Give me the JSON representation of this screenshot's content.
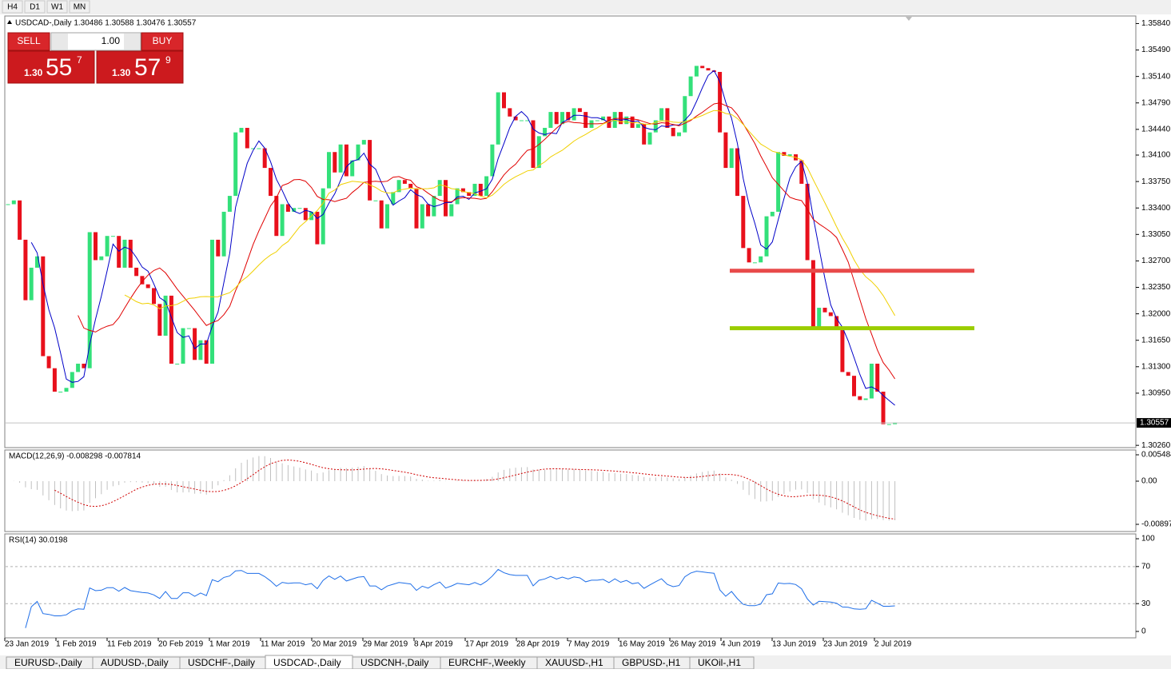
{
  "toolbar": {
    "buttons": [
      "H4",
      "D1",
      "W1",
      "MN"
    ]
  },
  "header": {
    "title": "USDCAD-,Daily  1.30486 1.30588 1.30476 1.30557"
  },
  "trade_panel": {
    "sell": "SELL",
    "buy": "BUY",
    "lot": "1.00",
    "sell_price": {
      "prefix": "1.30",
      "big": "55",
      "small": "7"
    },
    "buy_price": {
      "prefix": "1.30",
      "big": "57",
      "small": "9"
    }
  },
  "chart_data": {
    "type": "candlestick",
    "close": [
      1.3345,
      1.335,
      1.3298,
      1.3218,
      1.3261,
      1.3276,
      1.3144,
      1.3128,
      1.3097,
      1.3097,
      1.3102,
      1.3123,
      1.3134,
      1.3128,
      1.3308,
      1.3271,
      1.3276,
      1.3303,
      1.3303,
      1.3261,
      1.3298,
      1.3261,
      1.325,
      1.3239,
      1.3234,
      1.3213,
      1.3171,
      1.3224,
      1.3134,
      1.3134,
      1.3181,
      1.3181,
      1.3139,
      1.3165,
      1.3134,
      1.3298,
      1.3276,
      1.3335,
      1.3356,
      1.344,
      1.3446,
      1.3419,
      1.3419,
      1.3419,
      1.3393,
      1.3356,
      1.3303,
      1.3345,
      1.3335,
      1.334,
      1.334,
      1.3324,
      1.3335,
      1.3292,
      1.3366,
      1.3414,
      1.3387,
      1.3424,
      1.3382,
      1.3403,
      1.3424,
      1.343,
      1.335,
      1.335,
      1.3313,
      1.3345,
      1.3361,
      1.3377,
      1.3372,
      1.3366,
      1.3313,
      1.3345,
      1.3329,
      1.3356,
      1.3377,
      1.3329,
      1.3345,
      1.3366,
      1.3361,
      1.3356,
      1.3372,
      1.3356,
      1.3382,
      1.3424,
      1.3493,
      1.3472,
      1.3461,
      1.3456,
      1.3456,
      1.3456,
      1.3393,
      1.3435,
      1.3446,
      1.3467,
      1.3451,
      1.3467,
      1.3456,
      1.3472,
      1.3467,
      1.3446,
      1.3456,
      1.3456,
      1.3461,
      1.3446,
      1.3467,
      1.3451,
      1.3461,
      1.3446,
      1.3451,
      1.3424,
      1.344,
      1.3456,
      1.3472,
      1.3446,
      1.3435,
      1.344,
      1.3488,
      1.3514,
      1.3528,
      1.3525,
      1.3522,
      1.352,
      1.344,
      1.3393,
      1.3419,
      1.3356,
      1.3287,
      1.3268,
      1.3268,
      1.3276,
      1.3329,
      1.3335,
      1.3414,
      1.3409,
      1.3411,
      1.3403,
      1.3372,
      1.3271,
      1.3181,
      1.3208,
      1.3202,
      1.3197,
      1.3181,
      1.3123,
      1.3118,
      1.3091,
      1.3086,
      1.3088,
      1.3134,
      1.3097,
      1.3054,
      1.3054,
      1.3056
    ],
    "up_color": "#33e07a",
    "down_color": "#e8101c",
    "ma_colors": [
      "#0000c8",
      "#e00000",
      "#f0d000"
    ],
    "levels": [
      {
        "price": 1.3257,
        "color": "#e84a4a"
      },
      {
        "price": 1.3181,
        "color": "#9acd00"
      }
    ],
    "current_price": 1.30557,
    "ylim": [
      1.3023,
      1.3594
    ],
    "yticks": [
      {
        "value": 1.3584,
        "label": "1.35840"
      },
      {
        "value": 1.3549,
        "label": "1.35490"
      },
      {
        "value": 1.3514,
        "label": "1.35140"
      },
      {
        "value": 1.3479,
        "label": "1.34790"
      },
      {
        "value": 1.3444,
        "label": "1.34440"
      },
      {
        "value": 1.341,
        "label": "1.34100"
      },
      {
        "value": 1.3375,
        "label": "1.33750"
      },
      {
        "value": 1.334,
        "label": "1.33400"
      },
      {
        "value": 1.3305,
        "label": "1.33050"
      },
      {
        "value": 1.327,
        "label": "1.32700"
      },
      {
        "value": 1.3235,
        "label": "1.32350"
      },
      {
        "value": 1.32,
        "label": "1.32000"
      },
      {
        "value": 1.3165,
        "label": "1.31650"
      },
      {
        "value": 1.313,
        "label": "1.31300"
      },
      {
        "value": 1.3095,
        "label": "1.30950"
      },
      {
        "value": 1.3026,
        "label": "1.30260"
      }
    ],
    "x_labels": [
      "23 Jan 2019",
      "1 Feb 2019",
      "11 Feb 2019",
      "20 Feb 2019",
      "1 Mar 2019",
      "11 Mar 2019",
      "20 Mar 2019",
      "29 Mar 2019",
      "8 Apr 2019",
      "17 Apr 2019",
      "28 Apr 2019",
      "7 May 2019",
      "16 May 2019",
      "26 May 2019",
      "4 Jun 2019",
      "13 Jun 2019",
      "23 Jun 2019",
      "2 Jul 2019"
    ],
    "macd": {
      "title": "MACD(12,26,9) -0.008298 -0.007814",
      "ylim": [
        -0.01047,
        0.00648
      ],
      "yticks": [
        0.005484,
        {
          "value": 0,
          "label": "0.00"
        },
        -0.008973
      ]
    },
    "rsi": {
      "title": "RSI(14) 30.0198",
      "ylim": [
        -6.9,
        105.2
      ],
      "yticks": [
        100,
        70,
        30,
        0
      ]
    }
  },
  "tabs": [
    "EURUSD-,Daily",
    "AUDUSD-,Daily",
    "USDCHF-,Daily",
    "USDCAD-,Daily",
    "USDCNH-,Daily",
    "EURCHF-,Weekly",
    "XAUUSD-,H1",
    "GBPUSD-,H1",
    "UKOil-,H1"
  ]
}
